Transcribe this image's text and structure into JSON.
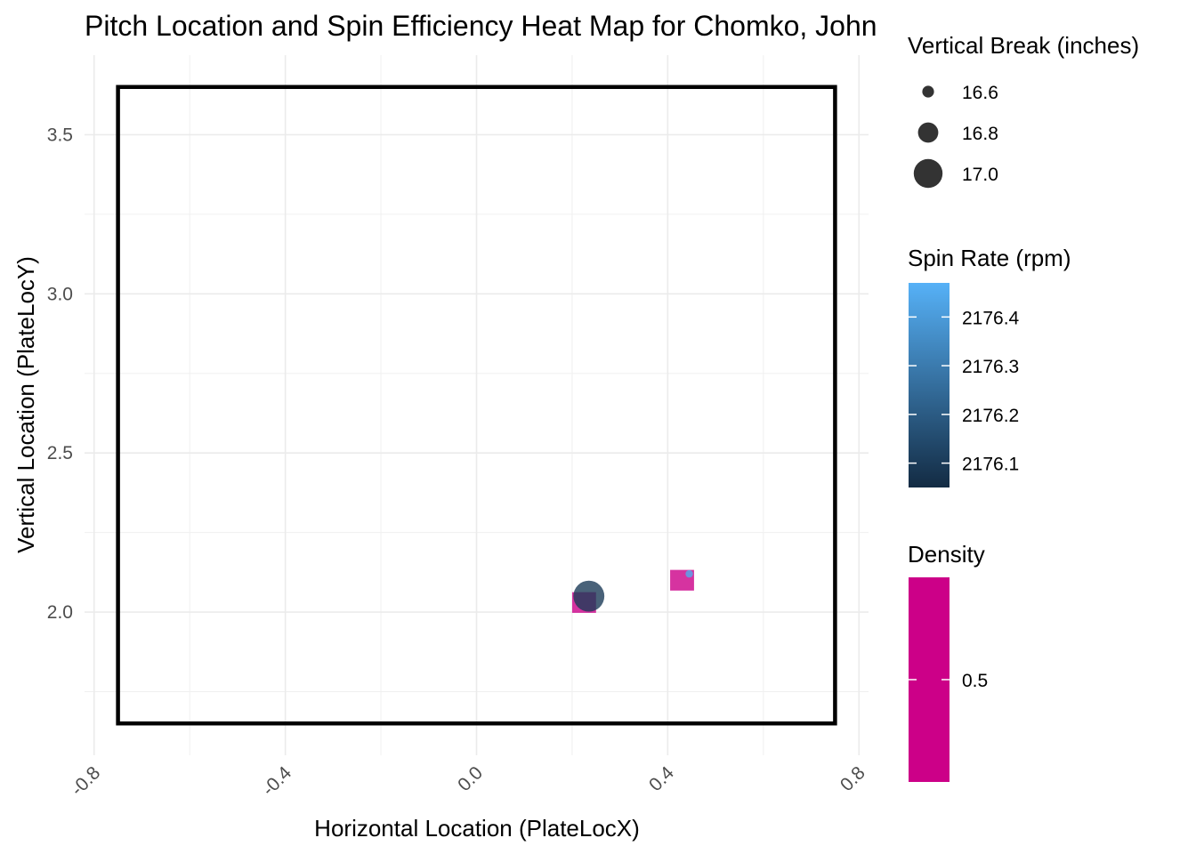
{
  "chart_data": {
    "type": "scatter",
    "title": "Pitch Location and Spin Efficiency Heat Map for Chomko, John",
    "xlabel": "Horizontal Location (PlateLocX)",
    "ylabel": "Vertical Location (PlateLocY)",
    "xlim": [
      -0.82,
      0.82
    ],
    "ylim": [
      1.55,
      3.75
    ],
    "x_ticks": [
      -0.8,
      -0.4,
      0.0,
      0.4,
      0.8
    ],
    "x_tick_labels": [
      "-0.8",
      "-0.4",
      "0.0",
      "0.4",
      "0.8"
    ],
    "y_ticks": [
      2.0,
      2.5,
      3.0,
      3.5
    ],
    "y_tick_labels": [
      "2.0",
      "2.5",
      "3.0",
      "3.5"
    ],
    "grid": true,
    "strike_zone": {
      "x": [
        -0.75,
        0.75
      ],
      "y": [
        1.65,
        3.65
      ]
    },
    "density_tiles": [
      {
        "x": 0.225,
        "y": 2.03,
        "w": 0.05,
        "h": 0.065,
        "density": 0.5
      },
      {
        "x": 0.43,
        "y": 2.1,
        "w": 0.05,
        "h": 0.065,
        "density": 0.5
      }
    ],
    "points": [
      {
        "x": 0.235,
        "y": 2.05,
        "vertical_break": 17.05,
        "spin_rate": 2176.1
      },
      {
        "x": 0.445,
        "y": 2.12,
        "vertical_break": 16.5,
        "spin_rate": 2176.45
      }
    ],
    "legend_placement": "right",
    "legends": {
      "size": {
        "title": "Vertical Break (inches)",
        "values": [
          16.6,
          16.8,
          17.0
        ],
        "labels": [
          "16.6",
          "16.8",
          "17.0"
        ]
      },
      "color": {
        "title": "Spin Rate (rpm)",
        "range": [
          2176.05,
          2176.47
        ],
        "low_color": "#132B43",
        "high_color": "#56B1F7",
        "breaks": [
          2176.1,
          2176.2,
          2176.3,
          2176.4
        ],
        "labels": [
          "2176.1",
          "2176.2",
          "2176.3",
          "2176.4"
        ]
      },
      "fill": {
        "title": "Density",
        "color": "#CC0088",
        "breaks": [
          0.5
        ],
        "labels": [
          "0.5"
        ]
      }
    }
  }
}
